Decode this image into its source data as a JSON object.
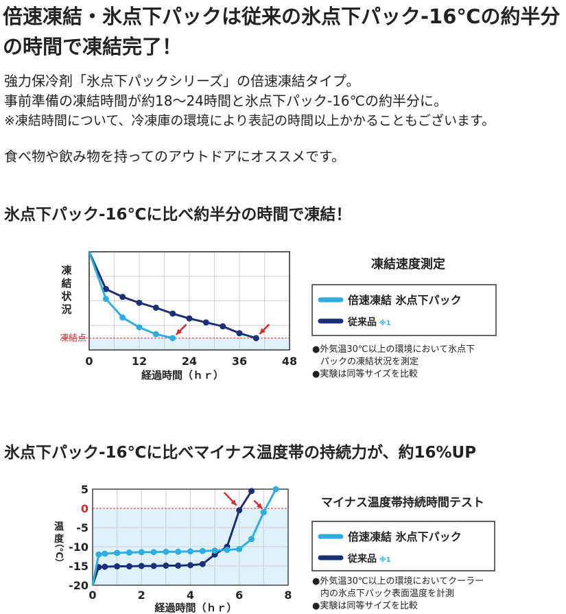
{
  "headline": "倍速凍結・氷点下パックは従来の氷点下パック-16℃の約半分の時間で凍結完了！",
  "intro": [
    "強力保冷剤「氷点下パックシリーズ」の倍速凍結タイプ。",
    "事前準備の凍結時間が約18〜24時間と氷点下パック-16℃の約半分に。",
    "※凍結時間について、冷凍庫の環境により表記の時間以上かかることもございます。"
  ],
  "outdoor": "食べ物や飲み物を持ってのアウトドアにオススメです。",
  "section1_title": "氷点下パック-16℃に比べ約半分の時間で凍結！",
  "section2_title": "氷点下パック-16℃に比べマイナス温度帯の持続力が、約16%UP",
  "colors": {
    "fast": "#2eaee0",
    "conventional": "#1a2f78",
    "area": "#dff1fb",
    "freeze_line": "#d62b2b",
    "arrow": "#d62b2b"
  },
  "chart_data": [
    {
      "type": "line",
      "title": "凍結速度測定",
      "xlabel": "経過時間（ｈｒ）",
      "ylabel": "凍結状況",
      "xticks": [
        "0",
        "12",
        "24",
        "36",
        "48"
      ],
      "xlim": [
        0,
        48
      ],
      "ylim": [
        0,
        100
      ],
      "reference_label": "凍結点",
      "reference_value": 12,
      "grid": true,
      "legend_position": "right",
      "series": [
        {
          "name": "倍速凍結 氷点下パック",
          "color": "#2eaee0",
          "x": [
            0,
            4,
            8,
            12,
            16,
            20
          ],
          "y": [
            100,
            52,
            33,
            23,
            16,
            12
          ]
        },
        {
          "name": "従来品",
          "note": "※1",
          "color": "#1a2f78",
          "x": [
            0,
            4,
            8,
            12,
            16,
            20,
            24,
            28,
            32,
            36,
            40
          ],
          "y": [
            100,
            62,
            54,
            48,
            43,
            37,
            32,
            28,
            24,
            17,
            12
          ]
        }
      ],
      "notes": [
        "●外気温30℃以上の環境において氷点下",
        "パックの凍結状況を測定",
        "●実験は同等サイズを比較"
      ]
    },
    {
      "type": "line",
      "title": "マイナス温度帯持続時間テスト",
      "xlabel": "経過時間（ｈｒ）",
      "ylabel": "温度（℃）",
      "xticks": [
        "0",
        "2",
        "4",
        "6",
        "8"
      ],
      "yticks": [
        "5",
        "0",
        "-5",
        "-10",
        "-15",
        "-20"
      ],
      "xlim": [
        0,
        8
      ],
      "ylim": [
        -20,
        5
      ],
      "reference_value": 0,
      "grid": true,
      "legend_position": "right",
      "series": [
        {
          "name": "倍速凍結 氷点下パック",
          "color": "#2eaee0",
          "x": [
            0,
            0.25,
            0.5,
            1,
            1.5,
            2,
            2.5,
            3,
            3.5,
            4,
            4.5,
            5,
            5.5,
            6,
            6.5,
            7,
            7.5
          ],
          "y": [
            -20,
            -12,
            -11.8,
            -11.6,
            -11.5,
            -11.4,
            -11.4,
            -11.3,
            -11.3,
            -11.2,
            -11.1,
            -11.0,
            -10.8,
            -10.6,
            -8,
            -1,
            5
          ]
        },
        {
          "name": "従来品",
          "note": "※1",
          "color": "#1a2f78",
          "x": [
            0,
            0.25,
            0.5,
            1,
            1.5,
            2,
            2.5,
            3,
            3.5,
            4,
            4.5,
            5,
            5.5,
            6,
            6.5
          ],
          "y": [
            -20,
            -15.3,
            -15.2,
            -15.1,
            -15.1,
            -15.0,
            -15.0,
            -14.9,
            -14.9,
            -14.8,
            -14.5,
            -12,
            -10,
            -0.5,
            4.5
          ]
        }
      ],
      "notes": [
        "●外気温30℃以上の環境においてクーラー",
        "内の氷点下パック表面温度を計測",
        "●実験は同等サイズを比較"
      ]
    }
  ]
}
